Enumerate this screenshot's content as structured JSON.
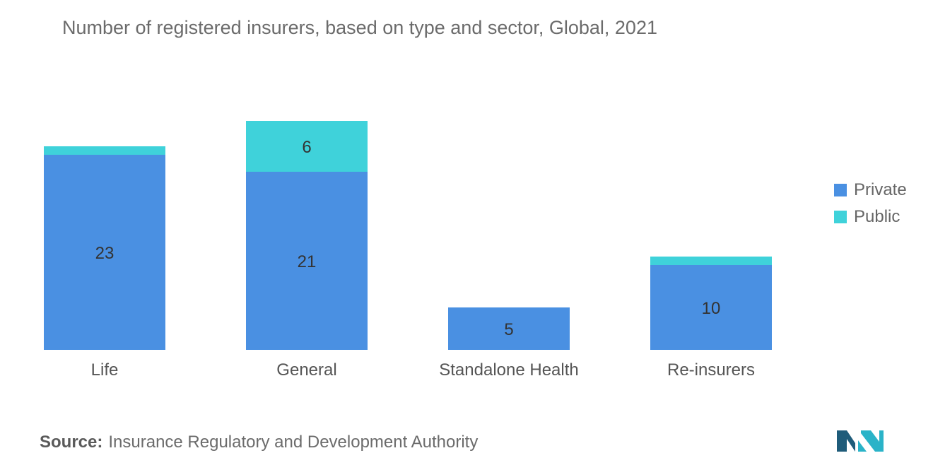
{
  "title": "Number of registered insurers, based on type and sector, Global, 2021",
  "legend": {
    "private_label": "Private",
    "public_label": "Public"
  },
  "source": {
    "label": "Source:",
    "text": "Insurance Regulatory and Development Authority"
  },
  "logo": {
    "icon": "mordor-intelligence-logo-icon"
  },
  "colors": {
    "private": "#4a90e2",
    "public": "#3fd2da",
    "logo_dark": "#1f5c7a",
    "logo_light": "#2ab3c8"
  },
  "chart_data": {
    "type": "bar",
    "stacked": true,
    "title": "Number of registered insurers, based on type and sector, Global, 2021",
    "categories": [
      "Life",
      "General",
      "Standalone Health",
      "Re-insurers"
    ],
    "series": [
      {
        "name": "Private",
        "values": [
          23,
          21,
          5,
          10
        ],
        "labels": [
          "23",
          "21",
          "5",
          "10"
        ]
      },
      {
        "name": "Public",
        "values": [
          1,
          6,
          0,
          1
        ],
        "labels": [
          "",
          "6",
          "",
          ""
        ]
      }
    ],
    "ylim": [
      0,
      30
    ],
    "grid": false,
    "legend_position": "right"
  }
}
